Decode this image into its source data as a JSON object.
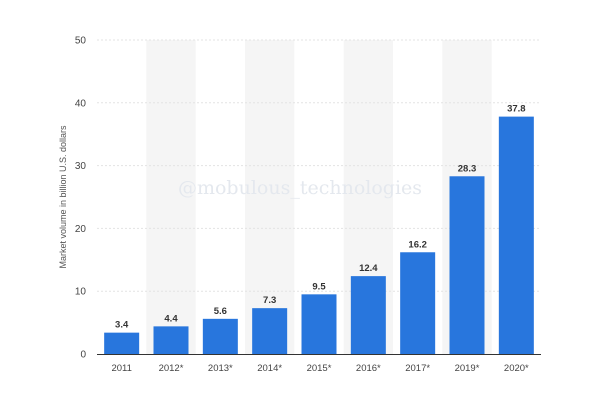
{
  "chart_data": {
    "type": "bar",
    "categories": [
      "2011",
      "2012*",
      "2013*",
      "2014*",
      "2015*",
      "2016*",
      "2017*",
      "2019*",
      "2020*"
    ],
    "values": [
      3.4,
      4.4,
      5.6,
      7.3,
      9.5,
      12.4,
      16.2,
      28.3,
      37.8
    ],
    "value_labels": [
      "3.4",
      "4.4",
      "5.6",
      "7.3",
      "9.5",
      "12.4",
      "16.2",
      "28.3",
      "37.8"
    ],
    "title": "",
    "xlabel": "",
    "ylabel": "Market volume in billion U.S. dollars",
    "ylim": [
      0,
      50
    ],
    "yticks": [
      "0",
      "10",
      "20",
      "30",
      "40",
      "50"
    ],
    "grid": true,
    "legend": "none",
    "bar_color": "#2876dd",
    "band_color": "#f5f5f5"
  },
  "watermark": "@mobulous_technologies"
}
